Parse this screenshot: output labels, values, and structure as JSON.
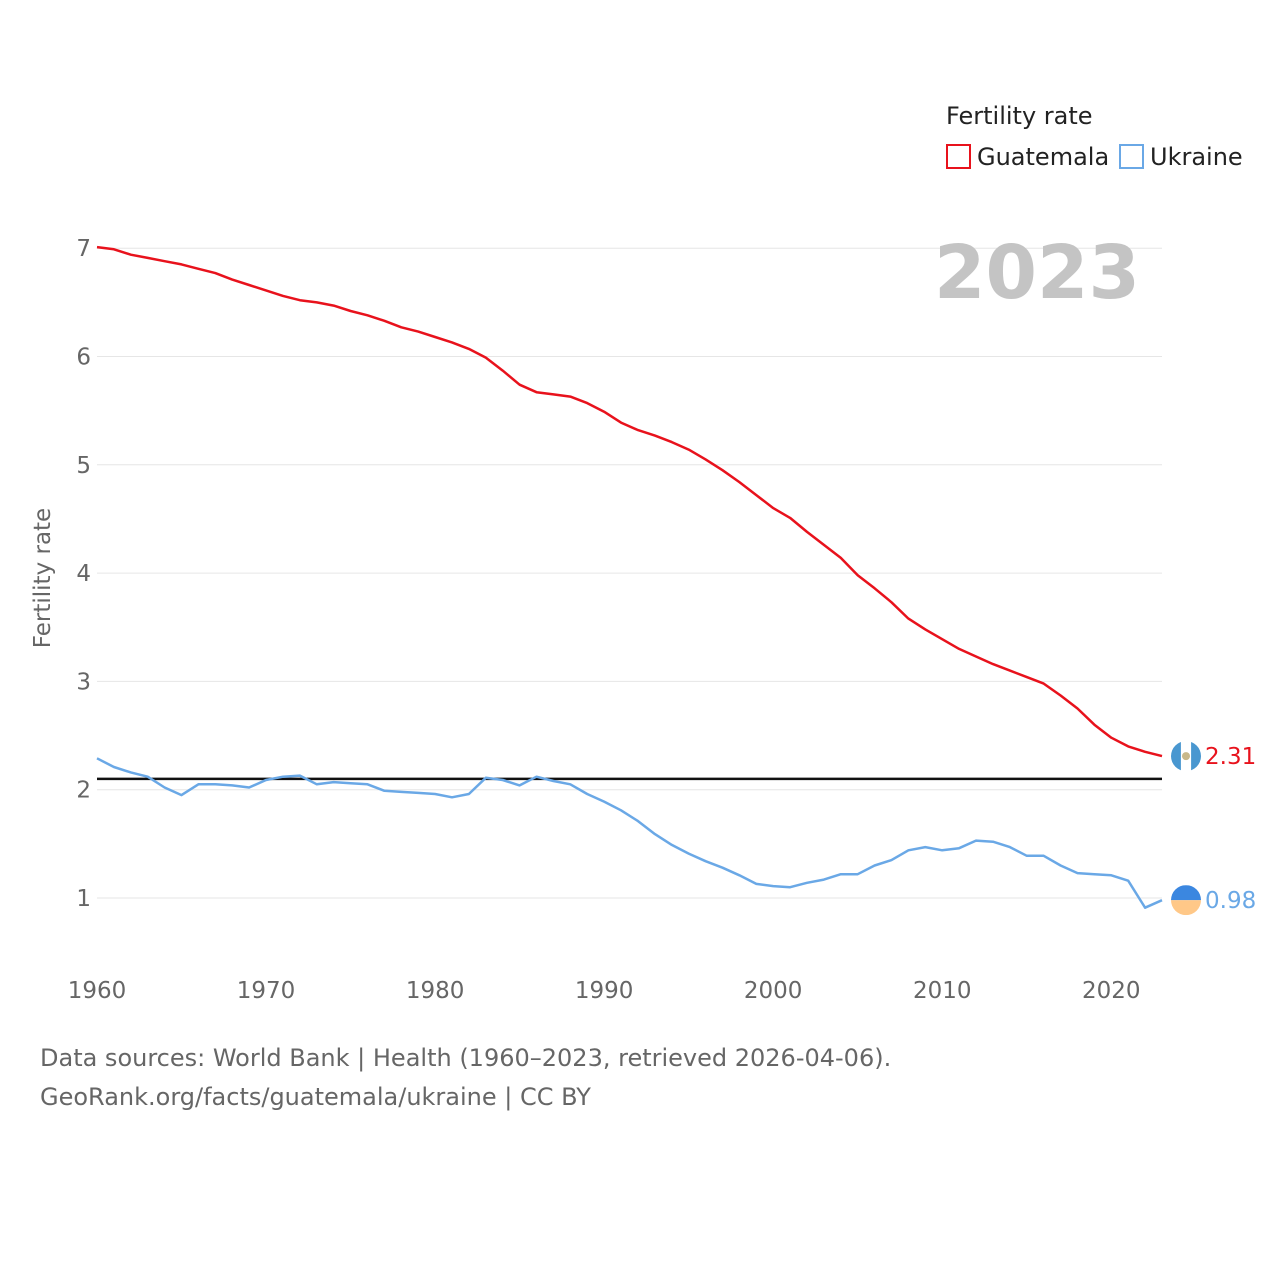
{
  "chart_data": {
    "type": "line",
    "year_label": "2023",
    "ylabel": "Fertility rate",
    "xlabel": "",
    "xlim": [
      1960,
      2023
    ],
    "ylim": [
      0.5,
      7.2
    ],
    "x_ticks": [
      1960,
      1970,
      1980,
      1990,
      2000,
      2010,
      2020
    ],
    "y_ticks": [
      1,
      2,
      3,
      4,
      5,
      6,
      7
    ],
    "reference_line": 2.1,
    "legend": {
      "title": "Fertility rate",
      "position": "top-right"
    },
    "x": [
      1960,
      1961,
      1962,
      1963,
      1964,
      1965,
      1966,
      1967,
      1968,
      1969,
      1970,
      1971,
      1972,
      1973,
      1974,
      1975,
      1976,
      1977,
      1978,
      1979,
      1980,
      1981,
      1982,
      1983,
      1984,
      1985,
      1986,
      1987,
      1988,
      1989,
      1990,
      1991,
      1992,
      1993,
      1994,
      1995,
      1996,
      1997,
      1998,
      1999,
      2000,
      2001,
      2002,
      2003,
      2004,
      2005,
      2006,
      2007,
      2008,
      2009,
      2010,
      2011,
      2012,
      2013,
      2014,
      2015,
      2016,
      2017,
      2018,
      2019,
      2020,
      2021,
      2022,
      2023
    ],
    "series": [
      {
        "name": "Guatemala",
        "color": "#e8121c",
        "end_label": "2.31",
        "values": [
          7.01,
          6.99,
          6.94,
          6.91,
          6.88,
          6.85,
          6.81,
          6.77,
          6.71,
          6.66,
          6.61,
          6.56,
          6.52,
          6.5,
          6.47,
          6.42,
          6.38,
          6.33,
          6.27,
          6.23,
          6.18,
          6.13,
          6.07,
          5.99,
          5.87,
          5.74,
          5.67,
          5.65,
          5.63,
          5.57,
          5.49,
          5.39,
          5.32,
          5.27,
          5.21,
          5.14,
          5.05,
          4.95,
          4.84,
          4.72,
          4.6,
          4.51,
          4.38,
          4.26,
          4.14,
          3.98,
          3.86,
          3.73,
          3.58,
          3.48,
          3.39,
          3.3,
          3.23,
          3.16,
          3.1,
          3.04,
          2.98,
          2.87,
          2.75,
          2.6,
          2.48,
          2.4,
          2.35,
          2.31
        ]
      },
      {
        "name": "Ukraine",
        "color": "#6aa8e6",
        "end_label": "0.98",
        "values": [
          2.29,
          2.21,
          2.16,
          2.12,
          2.02,
          1.95,
          2.05,
          2.05,
          2.04,
          2.02,
          2.09,
          2.12,
          2.13,
          2.05,
          2.07,
          2.06,
          2.05,
          1.99,
          1.98,
          1.97,
          1.96,
          1.93,
          1.96,
          2.11,
          2.09,
          2.04,
          2.12,
          2.08,
          2.05,
          1.96,
          1.89,
          1.81,
          1.71,
          1.59,
          1.49,
          1.41,
          1.34,
          1.28,
          1.21,
          1.13,
          1.11,
          1.1,
          1.14,
          1.17,
          1.22,
          1.22,
          1.3,
          1.35,
          1.44,
          1.47,
          1.44,
          1.46,
          1.53,
          1.52,
          1.47,
          1.39,
          1.39,
          1.3,
          1.23,
          1.22,
          1.21,
          1.16,
          0.91,
          0.98
        ]
      }
    ]
  },
  "footer": {
    "line1": "Data sources: World Bank | Health (1960–2023, retrieved 2026-04-06).",
    "line2": "GeoRank.org/facts/guatemala/ukraine | CC BY"
  }
}
